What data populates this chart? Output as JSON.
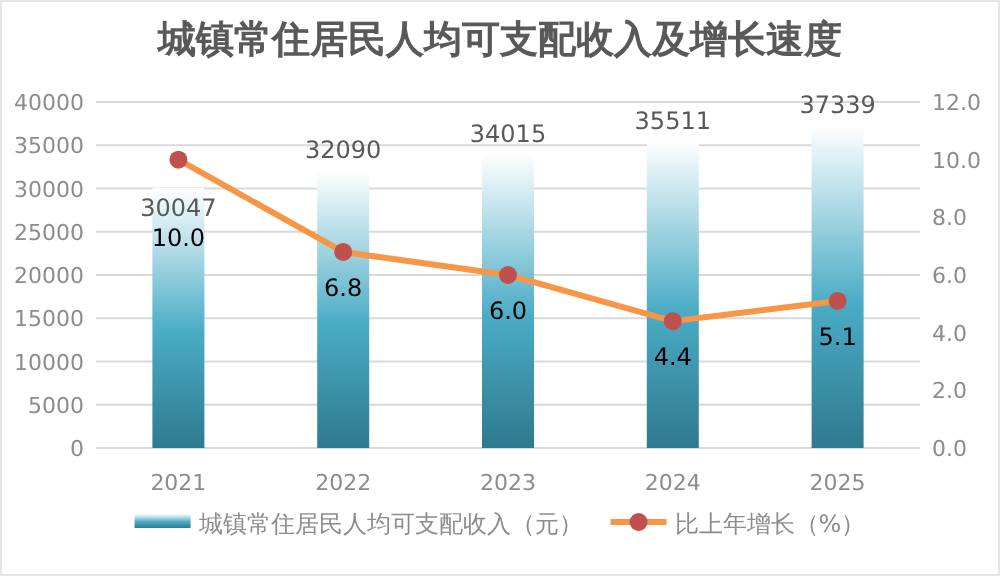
{
  "chart_data": {
    "type": "bar",
    "title": "城镇常住居民人均可支配收入及增长速度",
    "categories": [
      "2021",
      "2022",
      "2023",
      "2024",
      "2025"
    ],
    "series": [
      {
        "name": "城镇常住居民人均可支配收入（元）",
        "color": "#4bacc6",
        "values": [
          30047,
          32090,
          34015,
          35511,
          37339
        ]
      },
      {
        "name": "比上年增长（%）",
        "type": "line",
        "axis": "y2",
        "color": "#f79646",
        "marker": "circle",
        "values": [
          10.0,
          6.8,
          6.0,
          4.4,
          5.1
        ],
        "value_labels": [
          "10.0",
          "6.8",
          "6.0",
          "4.4",
          "5.1"
        ]
      }
    ],
    "ylim": [
      0,
      40000
    ],
    "yticks": [
      0,
      5000,
      10000,
      15000,
      20000,
      25000,
      30000,
      35000,
      40000
    ],
    "y2lim": [
      0,
      12
    ],
    "y2ticks": [
      {
        "value": 0,
        "label": "0.0"
      },
      {
        "value": 2,
        "label": "2.0"
      },
      {
        "value": 4,
        "label": "4.0"
      },
      {
        "value": 6,
        "label": "6.0"
      },
      {
        "value": 8,
        "label": "8.0"
      },
      {
        "value": 10,
        "label": "10.0"
      },
      {
        "value": 12,
        "label": "12.0"
      }
    ],
    "grid": "y",
    "legend": "bottom",
    "data_labels": true
  }
}
